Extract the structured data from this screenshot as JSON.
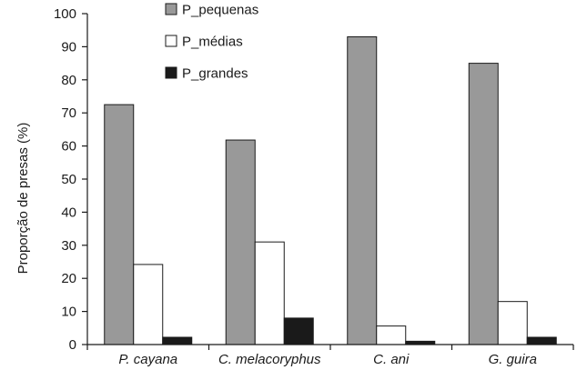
{
  "chart_data": {
    "type": "bar",
    "title": "",
    "xlabel": "",
    "ylabel": "Proporção de presas (%)",
    "ylim": [
      0,
      100
    ],
    "yticks": [
      0,
      10,
      20,
      30,
      40,
      50,
      60,
      70,
      80,
      90,
      100
    ],
    "categories": [
      "P. cayana",
      "C. melacoryphus",
      "C. ani",
      "G. guira"
    ],
    "series": [
      {
        "name": "P_pequenas",
        "color": "#999999",
        "values": [
          72.5,
          61.8,
          93,
          85
        ]
      },
      {
        "name": "P_médias",
        "color": "#ffffff",
        "values": [
          24.2,
          31,
          5.6,
          13
        ]
      },
      {
        "name": "P_grandes",
        "color": "#1a1a1a",
        "values": [
          2.2,
          8,
          1,
          2.2
        ]
      }
    ],
    "grid": false,
    "legend": "top-center"
  }
}
